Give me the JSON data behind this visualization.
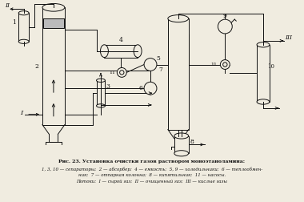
{
  "title": "Рис. 23. Установка очистки газов раствором моноэтаноламина:",
  "caption_line1": "1, 3, 10 — сепараторы;  2 — абсорбер;  4 — емкость;  5, 9 — холодильники;  6 — теплообмен-",
  "caption_line2": "ник;  7 — отпарная колонна;  8 — кипятильник;  11 — насосы.",
  "caption_line3": "Потоки:  I — сырой газ;  II — очищенный газ;  III — кислые газы",
  "bg_color": "#f0ece0",
  "line_color": "#111111",
  "font_color": "#111111"
}
